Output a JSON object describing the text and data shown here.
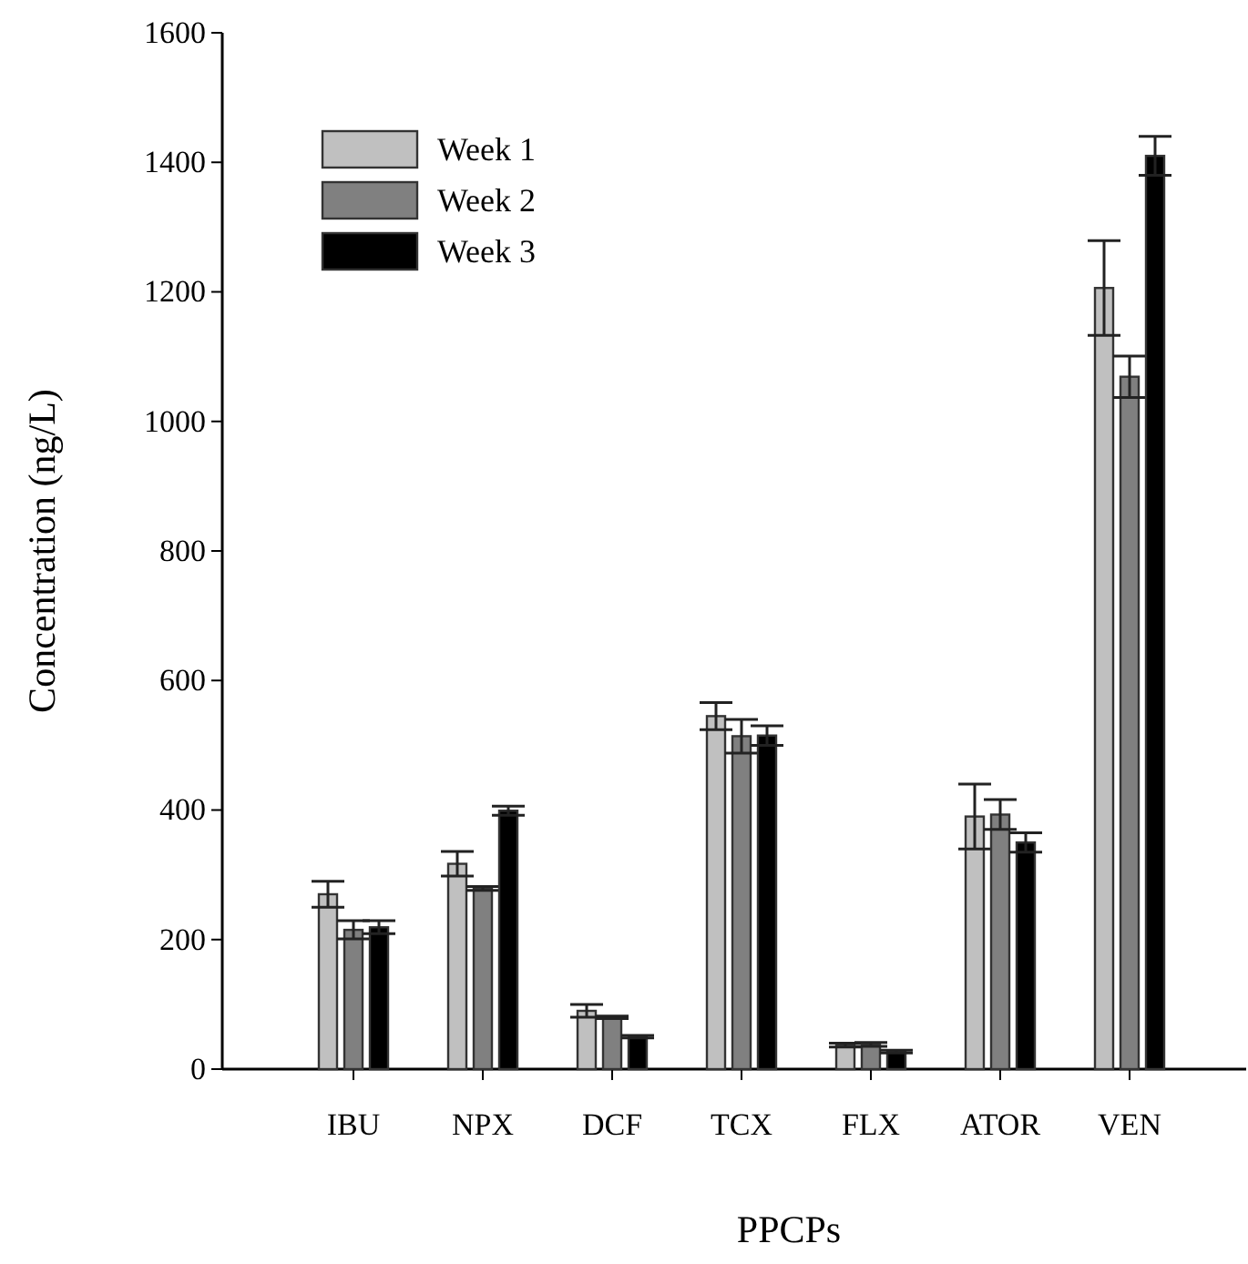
{
  "chart_data": {
    "type": "bar",
    "xlabel": "PPCPs",
    "ylabel": "Concentration (ng/L)",
    "categories": [
      "IBU",
      "NPX",
      "DCF",
      "TCX",
      "FLX",
      "ATOR",
      "VEN"
    ],
    "series": [
      {
        "name": "Week 1",
        "color": "#c0c0c0",
        "values": [
          270,
          317,
          90,
          545,
          37,
          390,
          1206
        ],
        "errors": [
          20,
          19,
          10,
          21,
          3,
          50,
          73
        ]
      },
      {
        "name": "Week 2",
        "color": "#808080",
        "values": [
          215,
          279,
          80,
          514,
          38,
          393,
          1069
        ],
        "errors": [
          14,
          3,
          2,
          26,
          3,
          23,
          32
        ]
      },
      {
        "name": "Week 3",
        "color": "#000000",
        "values": [
          219,
          399,
          50,
          515,
          27,
          350,
          1410
        ],
        "errors": [
          10,
          7,
          2,
          15,
          2,
          15,
          30
        ]
      }
    ],
    "ylim": [
      0,
      1600
    ],
    "yticks": [
      0,
      200,
      400,
      600,
      800,
      1000,
      1200,
      1400,
      1600
    ],
    "grid": false,
    "legend": "top left"
  }
}
